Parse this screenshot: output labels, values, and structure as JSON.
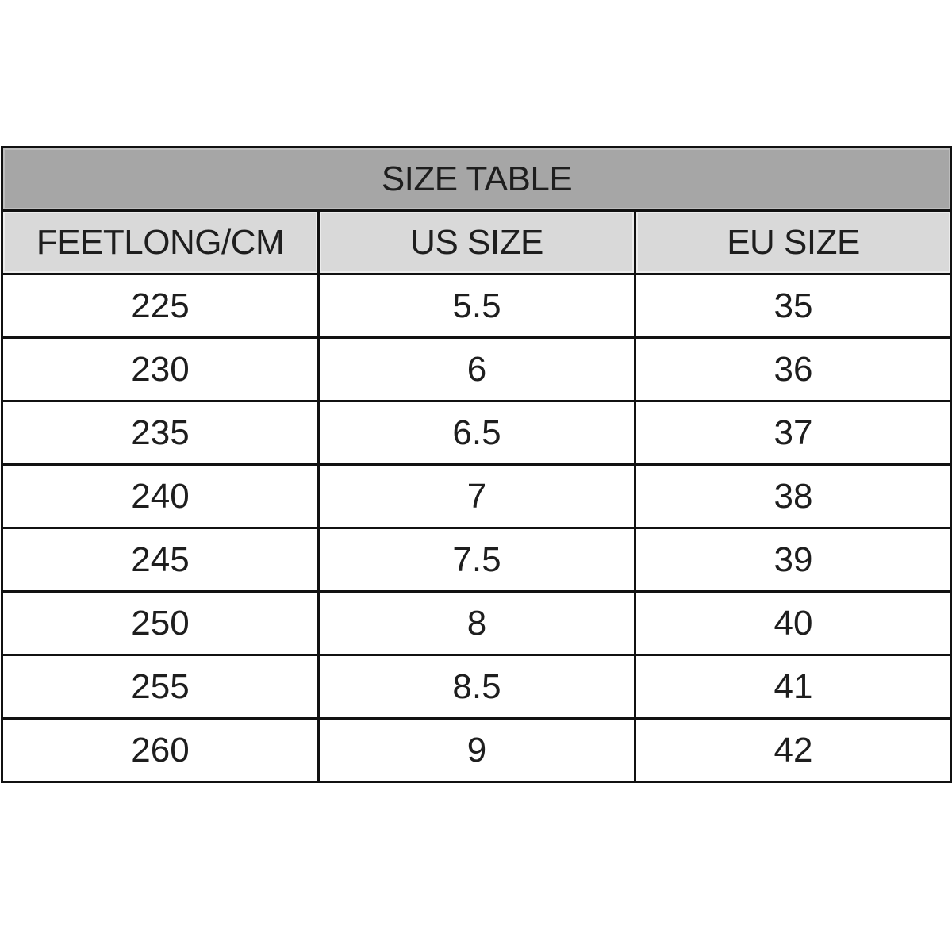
{
  "table": {
    "title": "SIZE TABLE",
    "columns": [
      "FEETLONG/CM",
      "US SIZE",
      "EU SIZE"
    ],
    "rows": [
      [
        "225",
        "5.5",
        "35"
      ],
      [
        "230",
        "6",
        "36"
      ],
      [
        "235",
        "6.5",
        "37"
      ],
      [
        "240",
        "7",
        "38"
      ],
      [
        "245",
        "7.5",
        "39"
      ],
      [
        "250",
        "8",
        "40"
      ],
      [
        "255",
        "8.5",
        "41"
      ],
      [
        "260",
        "9",
        "42"
      ]
    ],
    "colors": {
      "title_bg": "#a6a6a6",
      "header_bg": "#d9d9d9",
      "border": "#111111"
    }
  }
}
